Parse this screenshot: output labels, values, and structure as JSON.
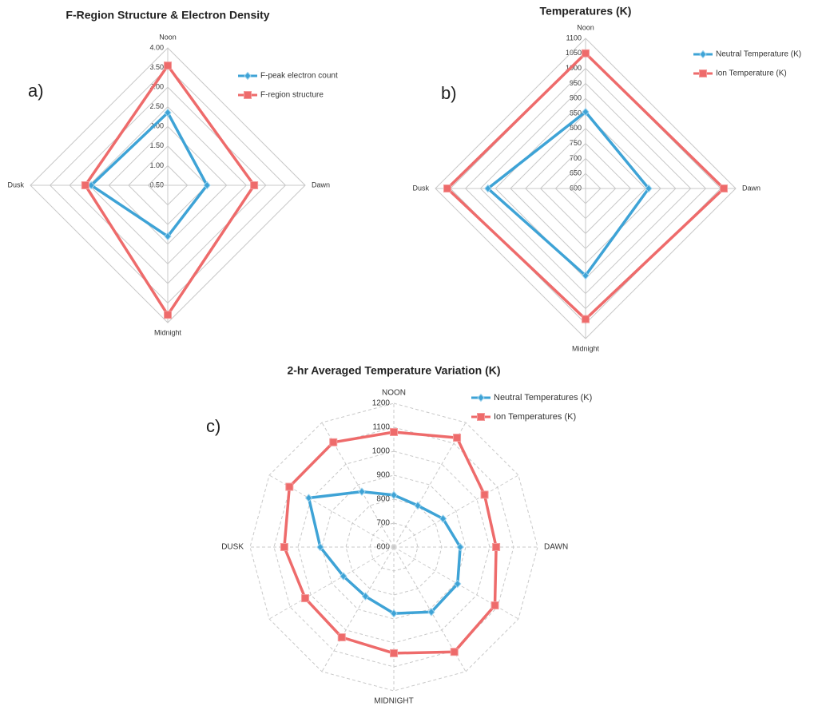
{
  "chart_data": [
    {
      "type": "radar",
      "label": "a)",
      "title": "F-Region Structure & Electron Density",
      "categories": [
        "Noon",
        "Dawn",
        "Midnight",
        "Dusk"
      ],
      "ylim": [
        0.5,
        4.0
      ],
      "yticks": [
        {
          "value": 0.5,
          "label": "0.50"
        },
        {
          "value": 1.0,
          "label": "1.00"
        },
        {
          "value": 1.5,
          "label": "1.50"
        },
        {
          "value": 2.0,
          "label": "2.00"
        },
        {
          "value": 2.5,
          "label": "2.50"
        },
        {
          "value": 3.0,
          "label": "3.00"
        },
        {
          "value": 3.5,
          "label": "3.50"
        },
        {
          "value": 4.0,
          "label": "4.00"
        }
      ],
      "grid": "solid",
      "legend": "upper right",
      "series": [
        {
          "name": "F-peak electron count",
          "color": "#3ea3d6",
          "marker": "diamond",
          "values": [
            2.35,
            1.5,
            1.8,
            2.45
          ]
        },
        {
          "name": "F-region structure",
          "color": "#ee6b6b",
          "marker": "square",
          "values": [
            3.55,
            2.7,
            3.8,
            2.6
          ]
        }
      ]
    },
    {
      "type": "radar",
      "label": "b)",
      "title": "Temperatures (K)",
      "categories": [
        "Noon",
        "Dawn",
        "Midnight",
        "Dusk"
      ],
      "ylim": [
        600,
        1100
      ],
      "yticks": [
        600,
        650,
        700,
        750,
        800,
        850,
        900,
        950,
        1000,
        1050,
        1100
      ],
      "grid": "solid",
      "legend": "upper right",
      "series": [
        {
          "name": "Neutral Temperature (K)",
          "color": "#3ea3d6",
          "marker": "diamond",
          "values": [
            855,
            810,
            890,
            925
          ]
        },
        {
          "name": "Ion Temperature (K)",
          "color": "#ee6b6b",
          "marker": "square",
          "values": [
            1050,
            1060,
            1035,
            1060
          ]
        }
      ]
    },
    {
      "type": "radar",
      "label": "c)",
      "title": "2-hr Averaged Temperature Variation (K)",
      "categories": [
        "NOON",
        null,
        null,
        "DAWN",
        null,
        null,
        "MIDNIGHT",
        null,
        null,
        "DUSK",
        null,
        null
      ],
      "ylim": [
        600,
        1200
      ],
      "yticks": [
        600,
        700,
        800,
        900,
        1000,
        1100,
        1200
      ],
      "grid": "dashed",
      "legend": "upper right",
      "series": [
        {
          "name": "Neutral Temperatures (K)",
          "color": "#3ea3d6",
          "marker": "diamond",
          "values": [
            817,
            800,
            837,
            877,
            907,
            913,
            877,
            837,
            843,
            907,
            1010,
            867
          ]
        },
        {
          "name": "Ion Temperatures (K)",
          "color": "#ee6b6b",
          "marker": "square",
          "values": [
            1080,
            1127,
            1037,
            1027,
            1087,
            1105,
            1043,
            1035,
            1027,
            1057,
            1103,
            1105
          ]
        }
      ]
    }
  ]
}
